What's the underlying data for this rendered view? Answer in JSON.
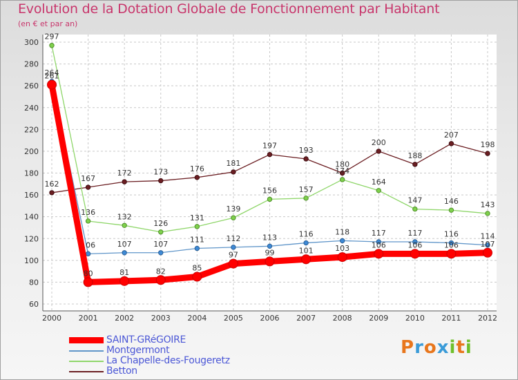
{
  "header": {
    "title": "Evolution de la Dotation Globale de Fonctionnement par Habitant",
    "subtitle": "(en € et par an)"
  },
  "logo": {
    "text": "Proxiti",
    "letters": [
      "P",
      "r",
      "o",
      "x",
      "i",
      "t",
      "i"
    ],
    "colors": [
      "#e8761c",
      "#3a9bd8",
      "#e8761c",
      "#3a9bd8",
      "#6fbf2a",
      "#e8761c",
      "#6fbf2a"
    ]
  },
  "chart_data": {
    "type": "line",
    "title": "Evolution de la Dotation Globale de Fonctionnement par Habitant",
    "subtitle": "(en € et par an)",
    "x": [
      2000,
      2001,
      2002,
      2003,
      2004,
      2005,
      2006,
      2007,
      2008,
      2009,
      2010,
      2011,
      2012
    ],
    "ylim": [
      60,
      300
    ],
    "yticks": [
      60,
      80,
      100,
      120,
      140,
      160,
      180,
      200,
      220,
      240,
      260,
      280,
      300
    ],
    "grid": true,
    "legend_position": "bottom-left",
    "series": [
      {
        "name": "Betton",
        "color": "#6b1e22",
        "values": [
          162,
          167,
          172,
          173,
          176,
          181,
          197,
          193,
          180,
          200,
          188,
          207,
          198
        ]
      },
      {
        "name": "La Chapelle-des-Fougeretz",
        "color": "#8fd66a",
        "values": [
          297,
          136,
          132,
          126,
          131,
          139,
          156,
          157,
          174,
          164,
          147,
          146,
          143
        ]
      },
      {
        "name": "Montgermont",
        "color": "#5f95c9",
        "values": [
          264,
          106,
          107,
          107,
          111,
          112,
          113,
          116,
          118,
          117,
          117,
          116,
          114
        ]
      },
      {
        "name": "SAINT-GRéGOIRE",
        "color": "#ff0000",
        "values": [
          261,
          80,
          81,
          82,
          85,
          97,
          99,
          101,
          103,
          106,
          106,
          106,
          107
        ]
      }
    ],
    "legend": [
      "SAINT-GRéGOIRE",
      "Montgermont",
      "La Chapelle-des-Fougeretz",
      "Betton"
    ]
  }
}
